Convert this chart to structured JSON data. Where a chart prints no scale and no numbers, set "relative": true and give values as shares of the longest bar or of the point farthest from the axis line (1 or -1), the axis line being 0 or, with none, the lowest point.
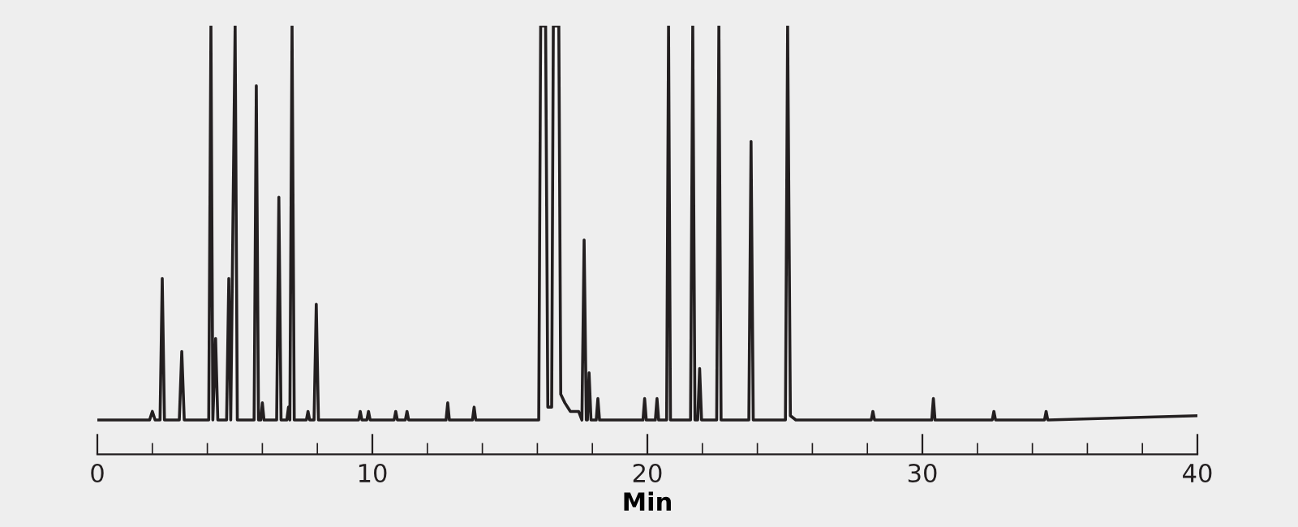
{
  "chart_data": {
    "type": "line",
    "relative": true,
    "xlabel": "Min",
    "xlim": [
      0,
      40
    ],
    "xticks": [
      0,
      {
        "value": 2,
        "label": null
      },
      {
        "value": 4,
        "label": null
      },
      {
        "value": 6,
        "label": null
      },
      {
        "value": 8,
        "label": null
      },
      10,
      {
        "value": 12,
        "label": null
      },
      {
        "value": 14,
        "label": null
      },
      {
        "value": 16,
        "label": null
      },
      {
        "value": 18,
        "label": null
      },
      20,
      {
        "value": 22,
        "label": null
      },
      {
        "value": 24,
        "label": null
      },
      {
        "value": 26,
        "label": null
      },
      {
        "value": 28,
        "label": null
      },
      30,
      {
        "value": 32,
        "label": null
      },
      {
        "value": 34,
        "label": null
      },
      {
        "value": 36,
        "label": null
      },
      {
        "value": 38,
        "label": null
      },
      40
    ],
    "grid": false,
    "legend": false,
    "marker": "none",
    "line_style": "solid",
    "series": [
      {
        "color": "#231f20",
        "x": [
          0.0,
          1.9,
          2.0,
          2.1,
          2.28,
          2.36,
          2.44,
          2.98,
          3.07,
          3.16,
          4.05,
          4.13,
          4.2,
          4.3,
          4.38,
          4.7,
          4.78,
          4.85,
          5.01,
          5.09,
          5.7,
          5.78,
          5.86,
          5.94,
          6.0,
          6.06,
          6.52,
          6.6,
          6.68,
          6.89,
          6.95,
          7.0,
          7.08,
          7.16,
          7.6,
          7.66,
          7.72,
          7.88,
          7.96,
          8.04,
          9.5,
          9.56,
          9.62,
          9.8,
          9.86,
          9.92,
          10.79,
          10.85,
          10.91,
          11.2,
          11.26,
          11.32,
          12.68,
          12.74,
          12.8,
          13.64,
          13.7,
          13.76,
          16.05,
          16.12,
          16.3,
          16.38,
          16.52,
          16.58,
          16.78,
          16.85,
          17.0,
          17.2,
          17.5,
          17.62,
          17.7,
          17.78,
          17.82,
          17.88,
          17.95,
          18.14,
          18.2,
          18.26,
          19.84,
          19.9,
          19.96,
          20.29,
          20.35,
          20.41,
          20.7,
          20.77,
          20.84,
          21.57,
          21.65,
          21.73,
          21.83,
          21.9,
          21.97,
          22.52,
          22.6,
          22.68,
          23.69,
          23.77,
          23.85,
          25.02,
          25.1,
          25.2,
          25.4,
          28.14,
          28.2,
          28.26,
          30.34,
          30.4,
          30.46,
          32.54,
          32.6,
          32.66,
          34.44,
          34.5,
          34.56,
          40.0
        ],
        "values": [
          0.08,
          0.08,
          0.1,
          0.08,
          0.08,
          0.41,
          0.08,
          0.08,
          0.24,
          0.08,
          0.08,
          1,
          0.08,
          0.27,
          0.08,
          0.08,
          0.41,
          0.08,
          1,
          0.08,
          0.08,
          0.86,
          0.08,
          0.08,
          0.12,
          0.08,
          0.08,
          0.6,
          0.08,
          0.08,
          0.11,
          0.08,
          1,
          0.08,
          0.08,
          0.1,
          0.08,
          0.08,
          0.35,
          0.08,
          0.08,
          0.1,
          0.08,
          0.08,
          0.1,
          0.08,
          0.08,
          0.1,
          0.08,
          0.08,
          0.1,
          0.08,
          0.08,
          0.12,
          0.08,
          0.08,
          0.11,
          0.08,
          0.08,
          1,
          1,
          0.11,
          0.11,
          1,
          1,
          0.14,
          0.12,
          0.1,
          0.1,
          0.08,
          0.5,
          0.08,
          0.08,
          0.19,
          0.08,
          0.08,
          0.13,
          0.08,
          0.08,
          0.13,
          0.08,
          0.08,
          0.13,
          0.08,
          0.08,
          1,
          0.08,
          0.08,
          1,
          0.08,
          0.08,
          0.2,
          0.08,
          0.08,
          1,
          0.08,
          0.08,
          0.73,
          0.08,
          0.08,
          1,
          0.09,
          0.08,
          0.08,
          0.1,
          0.08,
          0.08,
          0.13,
          0.08,
          0.08,
          0.1,
          0.08,
          0.08,
          0.1,
          0.08,
          0.09
        ]
      }
    ]
  }
}
